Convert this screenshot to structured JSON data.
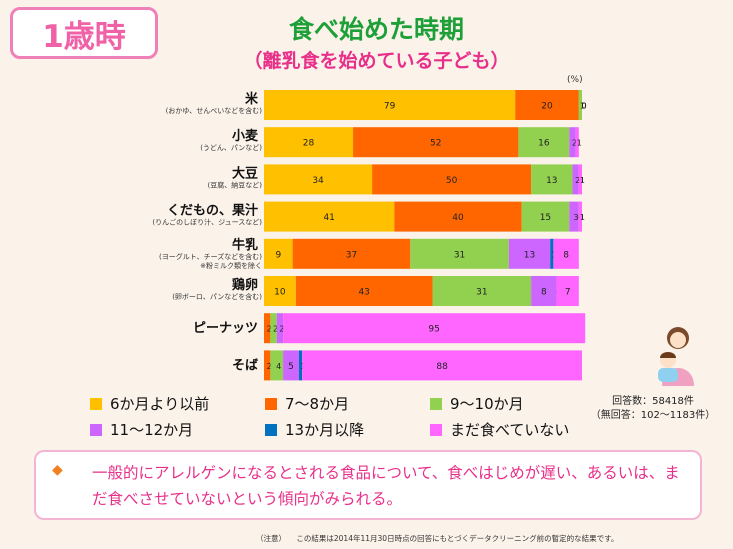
{
  "header": {
    "age_badge": "1歳時",
    "title": "食べ始めた時期",
    "subtitle": "（離乳食を始めている子ども）"
  },
  "chart_data": {
    "type": "bar",
    "orientation": "horizontal",
    "stacked": true,
    "unit": "(%)",
    "xlim": [
      0,
      100
    ],
    "categories": [
      {
        "name": "米",
        "note": "(おかゆ、せんべいなどを含む)"
      },
      {
        "name": "小麦",
        "note": "(うどん、パンなど)"
      },
      {
        "name": "大豆",
        "note": "(豆腐、納豆など)"
      },
      {
        "name": "くだもの、果汁",
        "note": "(りんごのしぼり汁、ジュースなど)"
      },
      {
        "name": "牛乳",
        "note": "(ヨーグルト、チーズなどを含む)",
        "note2": "※粉ミルク類を除く"
      },
      {
        "name": "鶏卵",
        "note": "(卵ボーロ、パンなどを含む)"
      },
      {
        "name": "ピーナッツ",
        "note": ""
      },
      {
        "name": "そば",
        "note": ""
      }
    ],
    "series": [
      {
        "name": "6か月より以前",
        "color": "#ffc000",
        "values": [
          79,
          28,
          34,
          41,
          9,
          10,
          0,
          0
        ]
      },
      {
        "name": "7～8か月",
        "color": "#ff6600",
        "values": [
          20,
          52,
          50,
          40,
          37,
          43,
          2,
          2
        ]
      },
      {
        "name": "9～10か月",
        "color": "#92d050",
        "values": [
          1,
          16,
          13,
          15,
          31,
          31,
          2,
          4
        ]
      },
      {
        "name": "11～12か月",
        "color": "#cc66ff",
        "values": [
          0,
          2,
          2,
          3,
          13,
          8,
          2,
          5
        ]
      },
      {
        "name": "13か月以降",
        "color": "#0070c0",
        "values": [
          0,
          0,
          0,
          0,
          1,
          0,
          0,
          1
        ]
      },
      {
        "name": "まだ食べていない",
        "color": "#ff66ff",
        "values": [
          0,
          1,
          1,
          1,
          8,
          7,
          95,
          88
        ]
      }
    ],
    "label_text": [
      [
        "79",
        "20",
        "1",
        "0",
        "0",
        "0"
      ],
      [
        "28",
        "52",
        "16",
        "2",
        "0",
        "1"
      ],
      [
        "34",
        "50",
        "13",
        "2",
        "0",
        "1"
      ],
      [
        "41",
        "40",
        "15",
        "3",
        "0",
        "1"
      ],
      [
        "9",
        "37",
        "31",
        "13",
        "1",
        "8"
      ],
      [
        "10",
        "43",
        "31",
        "8",
        "0",
        "7"
      ],
      [
        "0",
        "2",
        "2",
        "2",
        "0",
        "95"
      ],
      [
        "0",
        "2",
        "4",
        "5",
        "1",
        "88"
      ]
    ]
  },
  "response_info": {
    "count": "回答数：58418件",
    "no_answer": "（無回答：102～1183件）"
  },
  "note": {
    "bullet": "◆",
    "text": "一般的にアレルゲンになるとされる食品について、食べはじめが遅い、あるいは、まだ食べさせていないという傾向がみられる。"
  },
  "footnote": {
    "label": "（注意）",
    "text": "この結果は2014年11月30日時点の回答にもとづくデータクリーニング前の暫定的な結果です。"
  }
}
